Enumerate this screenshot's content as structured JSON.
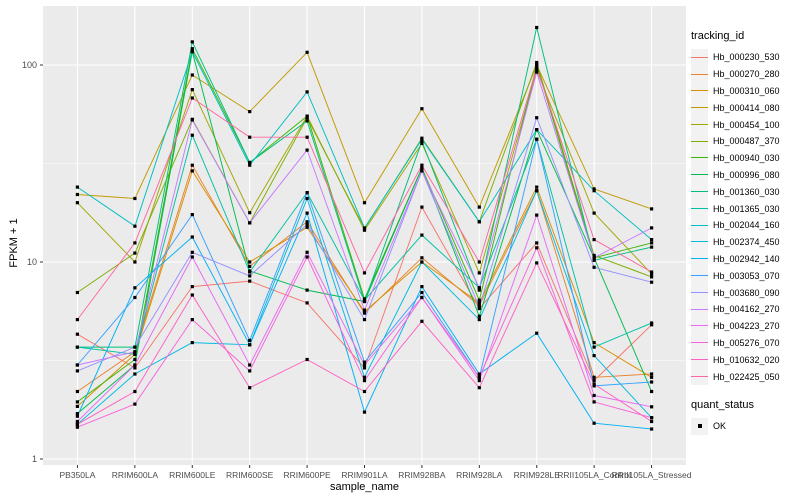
{
  "chart_data": {
    "type": "line",
    "title": "",
    "xlabel": "sample_name",
    "ylabel": "FPKM + 1",
    "y_scale": "log10",
    "y_ticks": [
      1,
      10,
      100
    ],
    "y_minor_gridlines": [
      3.1623,
      31.623
    ],
    "ylim": [
      1,
      190
    ],
    "grid": "on",
    "legend_position": "right",
    "point_shape": "filled-square",
    "point_color": "#000000",
    "categories": [
      "PB350LA",
      "RRIM600LA",
      "RRIM600LE",
      "RRIM600SE",
      "RRIM600PE",
      "RRIM901LA",
      "RRIM928BA",
      "RRIM928LA",
      "RRIM928LE",
      "RRII105LA_Control",
      "RRII105LA_Stressed"
    ],
    "series": [
      {
        "name": "Hb_000230_530",
        "color": "#F8766D",
        "values": [
          4.3,
          2.9,
          7.5,
          8.0,
          6.2,
          2.9,
          19.0,
          5.8,
          12.5,
          2.5,
          4.8
        ]
      },
      {
        "name": "Hb_000270_280",
        "color": "#EA8331",
        "values": [
          2.2,
          3.5,
          31.0,
          9.5,
          16.0,
          5.5,
          10.5,
          6.0,
          23.0,
          2.6,
          2.7
        ]
      },
      {
        "name": "Hb_000310_060",
        "color": "#D89000",
        "values": [
          1.85,
          3.4,
          29.0,
          10.0,
          15.0,
          5.6,
          10.0,
          6.2,
          24.0,
          3.9,
          2.6
        ]
      },
      {
        "name": "Hb_000414_080",
        "color": "#C09B00",
        "values": [
          22.0,
          21.0,
          89.0,
          58.0,
          116.0,
          20.0,
          60.0,
          19.0,
          100.0,
          23.5,
          18.6
        ]
      },
      {
        "name": "Hb_000454_100",
        "color": "#A3A500",
        "values": [
          20.0,
          10.0,
          75.0,
          17.8,
          55.0,
          14.5,
          40.0,
          8.8,
          94.0,
          17.7,
          8.7
        ]
      },
      {
        "name": "Hb_000487_370",
        "color": "#7CAE00",
        "values": [
          7.0,
          11.1,
          53.0,
          15.8,
          54.0,
          14.8,
          42.5,
          16.0,
          103.0,
          10.8,
          8.4
        ]
      },
      {
        "name": "Hb_000940_030",
        "color": "#39B600",
        "values": [
          1.95,
          3.2,
          121.0,
          32.0,
          55.0,
          6.5,
          30.0,
          6.4,
          100.0,
          10.5,
          12.5
        ]
      },
      {
        "name": "Hb_000996_080",
        "color": "#00BB4E",
        "values": [
          1.7,
          3.0,
          117.0,
          9.0,
          7.2,
          6.3,
          30.0,
          5.3,
          47.0,
          10.5,
          2.2
        ]
      },
      {
        "name": "Hb_001360_030",
        "color": "#00BF7D",
        "values": [
          3.7,
          3.7,
          131.0,
          32.0,
          52.0,
          6.3,
          41.0,
          7.2,
          155.0,
          10.2,
          11.9
        ]
      },
      {
        "name": "Hb_001365_030",
        "color": "#00C1A3",
        "values": [
          3.7,
          3.4,
          44.0,
          8.9,
          22.5,
          6.4,
          13.7,
          7.4,
          42.0,
          3.7,
          4.9
        ]
      },
      {
        "name": "Hb_002044_160",
        "color": "#00BFC4",
        "values": [
          24.0,
          15.2,
          117.0,
          31.0,
          73.0,
          14.9,
          42.0,
          16.0,
          47.0,
          23.0,
          13.0
        ]
      },
      {
        "name": "Hb_002374_450",
        "color": "#00BAE0",
        "values": [
          1.5,
          2.7,
          3.9,
          3.8,
          21.0,
          2.6,
          10.0,
          5.1,
          23.0,
          3.35,
          1.62
        ]
      },
      {
        "name": "Hb_002942_140",
        "color": "#00B0F6",
        "values": [
          1.65,
          7.4,
          13.4,
          3.8,
          17.7,
          1.73,
          7.5,
          2.7,
          4.35,
          1.52,
          1.42
        ]
      },
      {
        "name": "Hb_003053_070",
        "color": "#35A2FF",
        "values": [
          3.0,
          6.6,
          17.4,
          4.0,
          22.5,
          3.1,
          7.0,
          2.6,
          42.0,
          2.35,
          2.46
        ]
      },
      {
        "name": "Hb_003680_090",
        "color": "#9590FF",
        "values": [
          2.8,
          3.7,
          11.2,
          8.5,
          15.5,
          5.1,
          29.0,
          5.9,
          54.0,
          9.4,
          7.9
        ]
      },
      {
        "name": "Hb_004162_270",
        "color": "#C77CFF",
        "values": [
          3.0,
          3.5,
          52.6,
          15.8,
          37.0,
          5.7,
          29.0,
          7.4,
          92.0,
          10.5,
          14.9
        ]
      },
      {
        "name": "Hb_004223_270",
        "color": "#E76BF3",
        "values": [
          1.55,
          3.0,
          10.6,
          3.0,
          11.2,
          3.0,
          6.6,
          2.5,
          17.3,
          2.1,
          1.84
        ]
      },
      {
        "name": "Hb_005276_070",
        "color": "#FA62DB",
        "values": [
          1.45,
          1.9,
          5.1,
          2.8,
          10.6,
          2.5,
          6.6,
          2.6,
          11.8,
          1.95,
          1.62
        ]
      },
      {
        "name": "Hb_010632_020",
        "color": "#FF61C3",
        "values": [
          1.5,
          2.2,
          6.8,
          2.3,
          3.2,
          2.2,
          5.0,
          2.3,
          9.9,
          2.4,
          1.55
        ]
      },
      {
        "name": "Hb_022425_050",
        "color": "#FF67A4",
        "values": [
          5.1,
          12.5,
          68.0,
          43.0,
          43.0,
          8.8,
          31.0,
          10.0,
          97.0,
          13.0,
          8.9
        ]
      }
    ]
  },
  "legend": {
    "color_title": "tracking_id",
    "shape_title": "quant_status",
    "shape_items": [
      {
        "label": "OK",
        "marker": "black-square"
      }
    ]
  },
  "style": {
    "panel_bg": "#EBEBEB",
    "grid_color": "#FFFFFF",
    "axis_text_color": "#4D4D4D",
    "tick_color": "#333333",
    "legend_key_bg": "#F2F2F2",
    "figure_bg": "#FFFFFF"
  }
}
